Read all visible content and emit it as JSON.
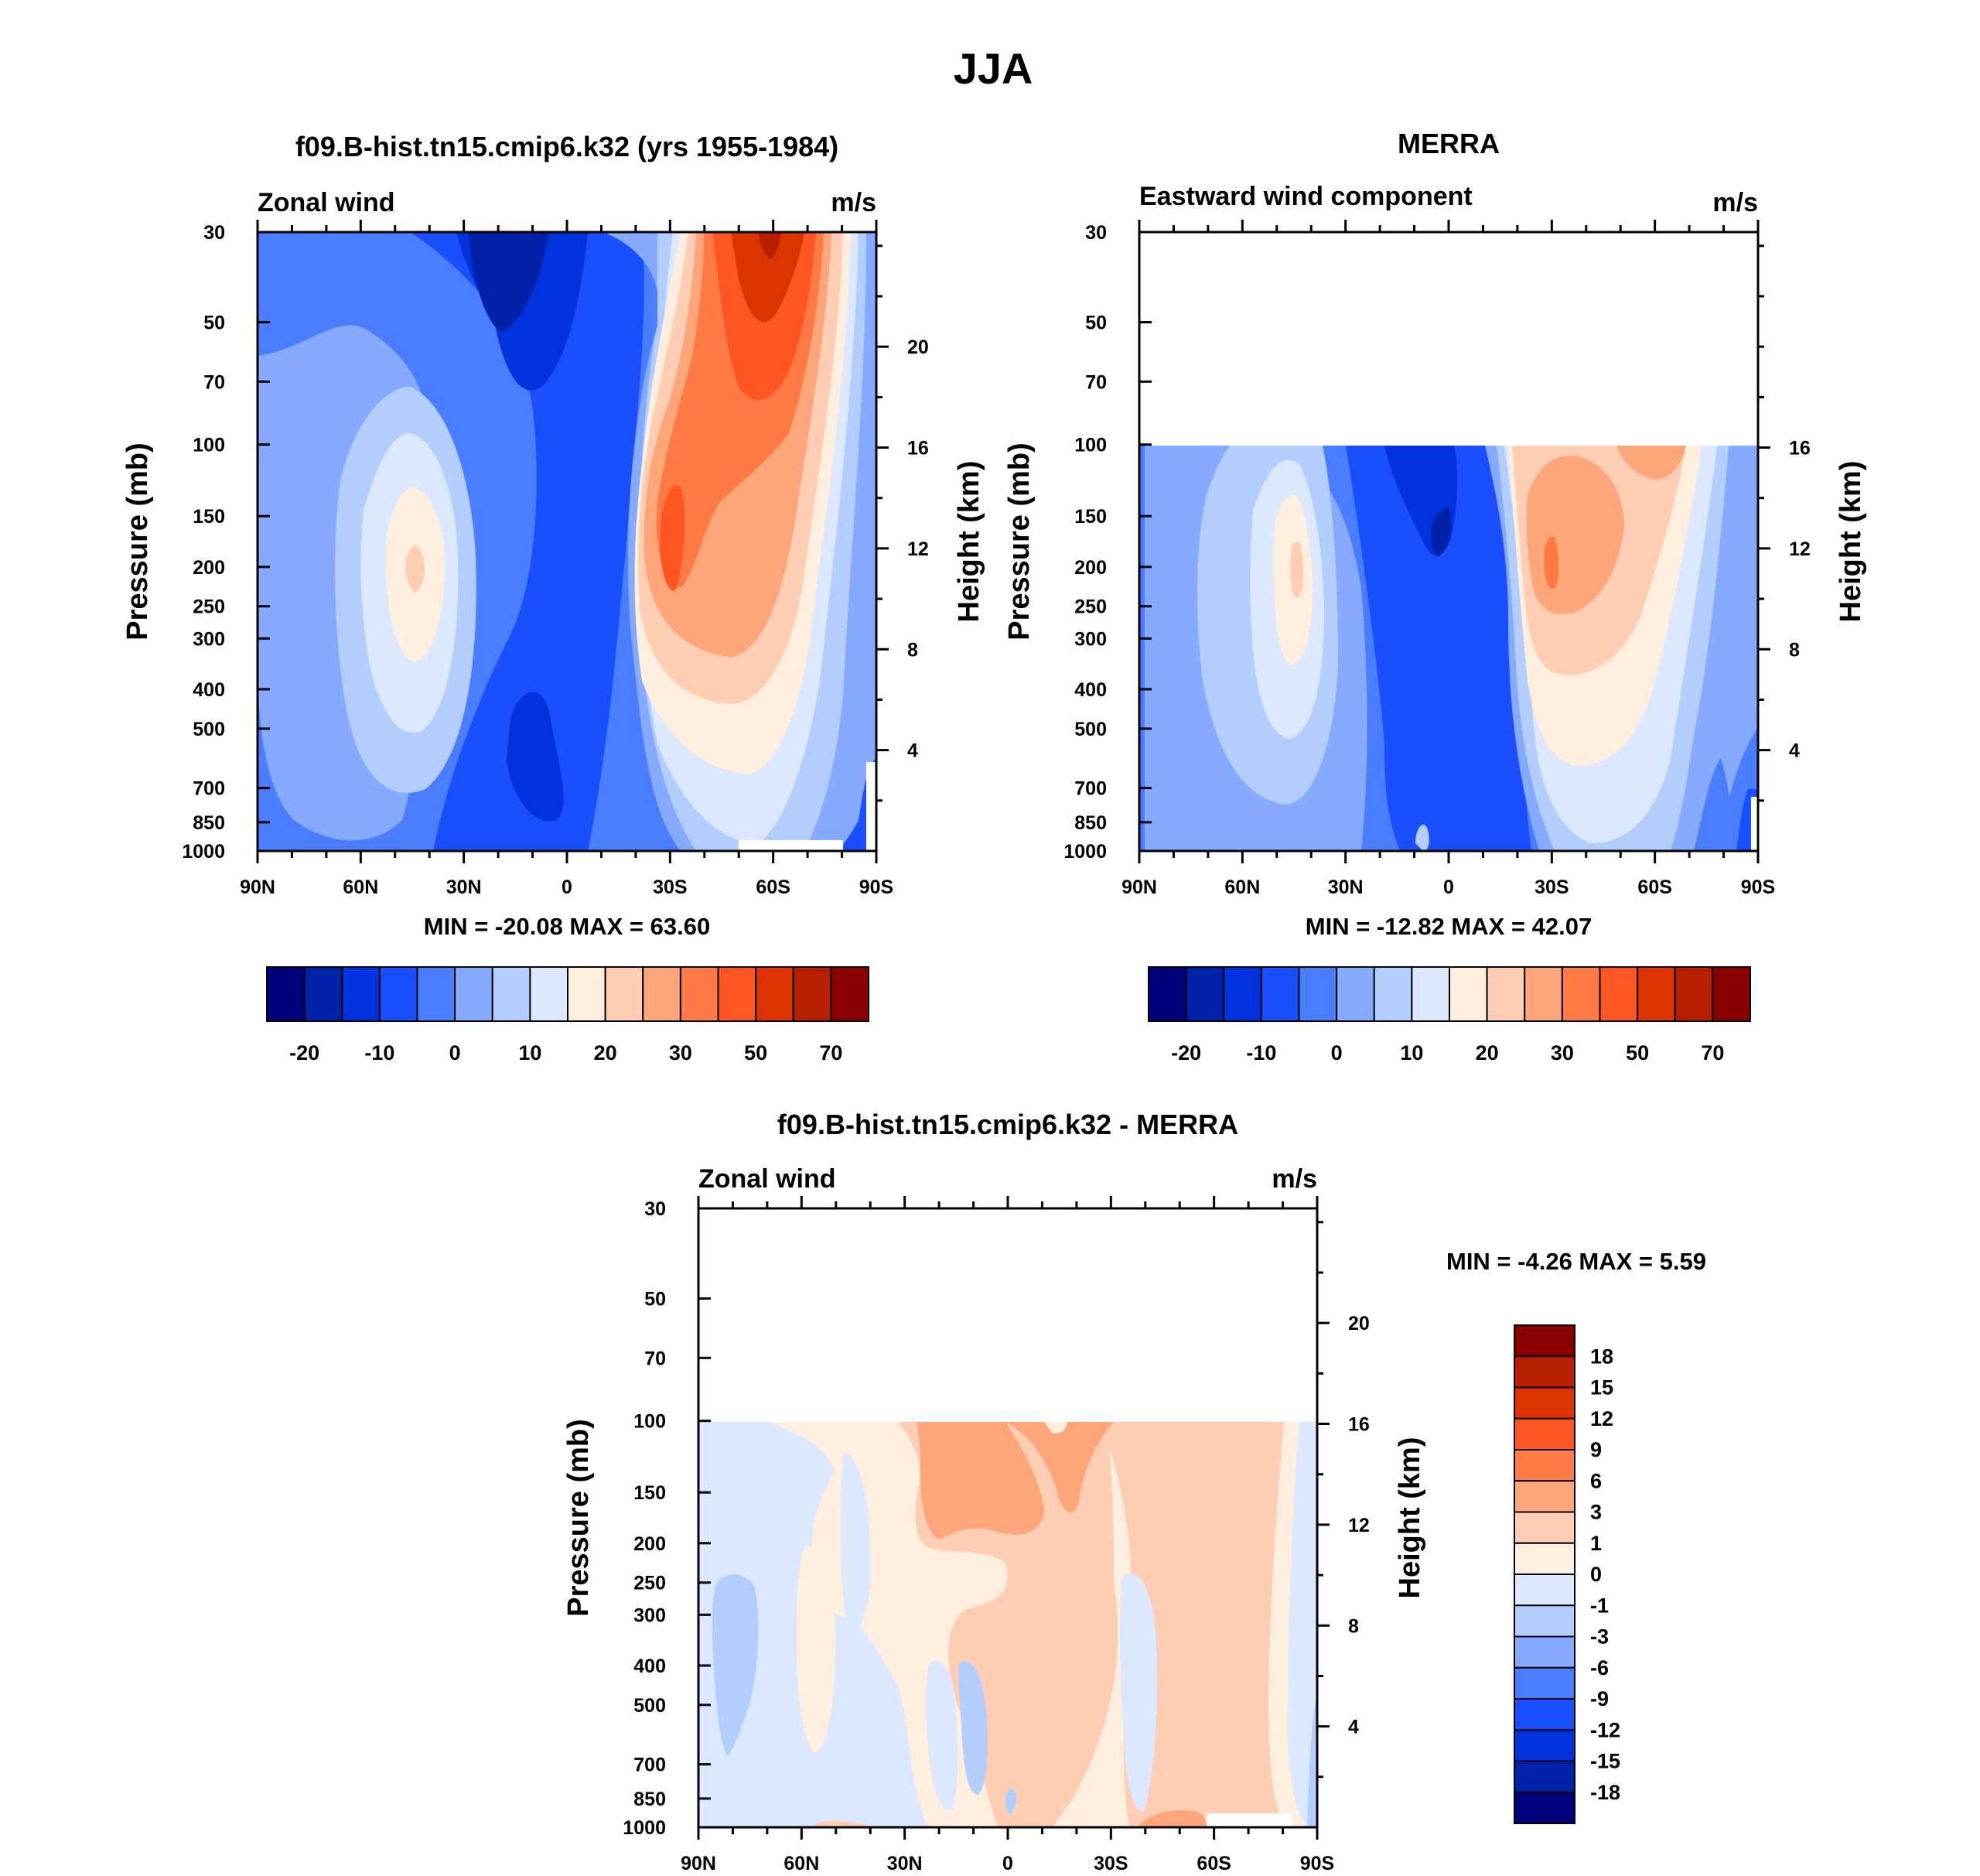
{
  "main_title": "JJA",
  "chart_data": [
    {
      "type": "contour",
      "title": "f09.B-hist.tn15.cmip6.k32 (yrs 1955-1984)",
      "left_string": "Zonal wind",
      "right_string": "m/s",
      "ylabel": "Pressure (mb)",
      "ylabel_right": "Height (km)",
      "x_ticks": [
        "90N",
        "60N",
        "30N",
        "0",
        "30S",
        "60S",
        "90S"
      ],
      "y_ticks": [
        "30",
        "50",
        "70",
        "100",
        "150",
        "200",
        "250",
        "300",
        "400",
        "500",
        "700",
        "850",
        "1000"
      ],
      "y_ticks_right": [
        "20",
        "16",
        "12",
        "8",
        "4"
      ],
      "ylim": [
        1000,
        30
      ],
      "data_top_mb": 30,
      "min_max": "MIN = -20.08  MAX =  63.60",
      "min": -20.08,
      "max": 63.6,
      "colorbar_labels": [
        "-20",
        "-10",
        "0",
        "10",
        "20",
        "30",
        "50",
        "70"
      ]
    },
    {
      "type": "contour",
      "title": "MERRA",
      "left_string": "Eastward wind component",
      "right_string": "m/s",
      "ylabel": "Pressure (mb)",
      "ylabel_right": "Height (km)",
      "x_ticks": [
        "90N",
        "60N",
        "30N",
        "0",
        "30S",
        "60S",
        "90S"
      ],
      "y_ticks": [
        "30",
        "50",
        "70",
        "100",
        "150",
        "200",
        "250",
        "300",
        "400",
        "500",
        "700",
        "850",
        "1000"
      ],
      "y_ticks_right": [
        "16",
        "12",
        "8",
        "4"
      ],
      "ylim": [
        1000,
        30
      ],
      "data_top_mb": 100,
      "min_max": "MIN = -12.82  MAX =  42.07",
      "min": -12.82,
      "max": 42.07,
      "colorbar_labels": [
        "-20",
        "-10",
        "0",
        "10",
        "20",
        "30",
        "50",
        "70"
      ]
    },
    {
      "type": "contour",
      "title": "f09.B-hist.tn15.cmip6.k32 - MERRA",
      "left_string": "Zonal wind",
      "right_string": "m/s",
      "ylabel": "Pressure (mb)",
      "ylabel_right": "Height (km)",
      "x_ticks": [
        "90N",
        "60N",
        "30N",
        "0",
        "30S",
        "60S",
        "90S"
      ],
      "y_ticks": [
        "30",
        "50",
        "70",
        "100",
        "150",
        "200",
        "250",
        "300",
        "400",
        "500",
        "700",
        "850",
        "1000"
      ],
      "y_ticks_right": [
        "20",
        "16",
        "12",
        "8",
        "4"
      ],
      "ylim": [
        1000,
        30
      ],
      "data_top_mb": 100,
      "min_max": "MIN =  -4.26  MAX =   5.59",
      "min": -4.26,
      "max": 5.59,
      "colorbar_labels": [
        "18",
        "15",
        "12",
        "9",
        "6",
        "3",
        "1",
        "0",
        "-1",
        "-3",
        "-6",
        "-9",
        "-12",
        "-15",
        "-18"
      ]
    }
  ],
  "colors": {
    "abs_scale": [
      "#00007a",
      "#0022ab",
      "#0033dd",
      "#1a4fff",
      "#4a7dff",
      "#86aaff",
      "#b4cdff",
      "#dbe8ff",
      "#ffeedd",
      "#ffcdb3",
      "#ffa57a",
      "#ff7a45",
      "#ff5522",
      "#dd3300",
      "#b81f00",
      "#8a0000"
    ],
    "diff_scale": [
      "#8a0000",
      "#b81f00",
      "#dd3300",
      "#ff5522",
      "#ff7a45",
      "#ffa57a",
      "#ffcdb3",
      "#ffeedd",
      "#dbe8ff",
      "#b4cdff",
      "#86aaff",
      "#4a7dff",
      "#1a4fff",
      "#0033dd",
      "#0022ab",
      "#00007a"
    ]
  }
}
